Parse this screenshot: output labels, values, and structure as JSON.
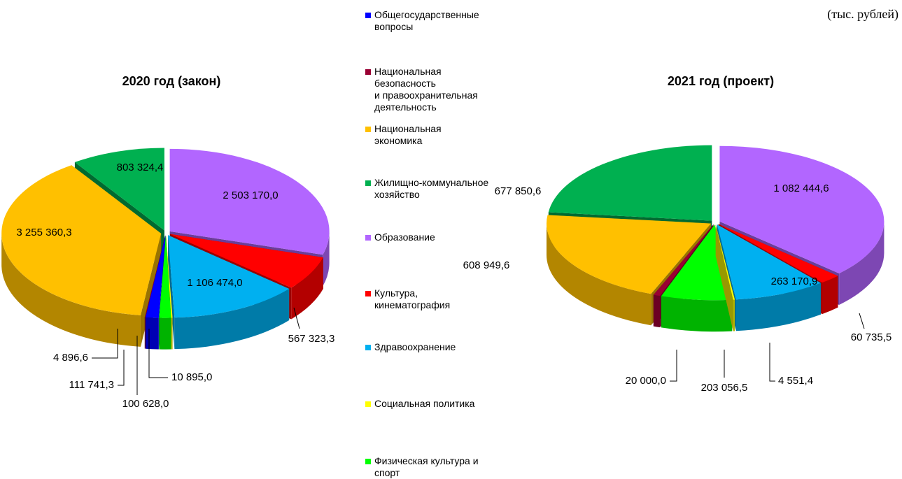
{
  "unit": "(тыс. рублей)",
  "legend": {
    "items": [
      {
        "name": "Общегосударственные\nвопросы",
        "color": "#0000ff"
      },
      {
        "name": "Национальная\nбезопасность\nи правоохранительная\nдеятельность",
        "color": "#990033"
      },
      {
        "name": "Национальная\nэкономика",
        "color": "#ffc000"
      },
      {
        "name": "Жилищно-коммунальное\nхозяйство",
        "color": "#00b050"
      },
      {
        "name": "Образование",
        "color": "#b266ff"
      },
      {
        "name": "Культура,\nкинематография",
        "color": "#ff0000"
      },
      {
        "name": "Здравоохранение",
        "color": "#00b0f0"
      },
      {
        "name": "Социальная политика",
        "color": "#ffff00"
      },
      {
        "name": "Физическая культура и\nспорт",
        "color": "#00ff00"
      }
    ]
  },
  "chart_data": [
    {
      "type": "pie",
      "title": "2020 год (закон)",
      "values": [
        111741.3,
        4896.6,
        3255360.3,
        803324.4,
        2503170.0,
        567323.3,
        1106474.0,
        10895.0,
        100628.0
      ],
      "value_labels": [
        "111 741,3",
        "4 896,6",
        "3 255 360,3",
        "803 324,4",
        "2 503 170,0",
        "567 323,3",
        "1 106 474,0",
        "10 895,0",
        "100 628,0"
      ]
    },
    {
      "type": "pie",
      "title": "2021 год (проект)",
      "values": [
        null,
        20000.0,
        608949.6,
        677850.6,
        1082444.6,
        60735.5,
        263170.9,
        4551.4,
        203056.5
      ],
      "value_labels": [
        null,
        "20 000,0",
        "608 949,6",
        "677 850,6",
        "1 082 444,6",
        "60 735,5",
        "263 170,9",
        "4 551,4",
        "203 056,5"
      ]
    }
  ]
}
